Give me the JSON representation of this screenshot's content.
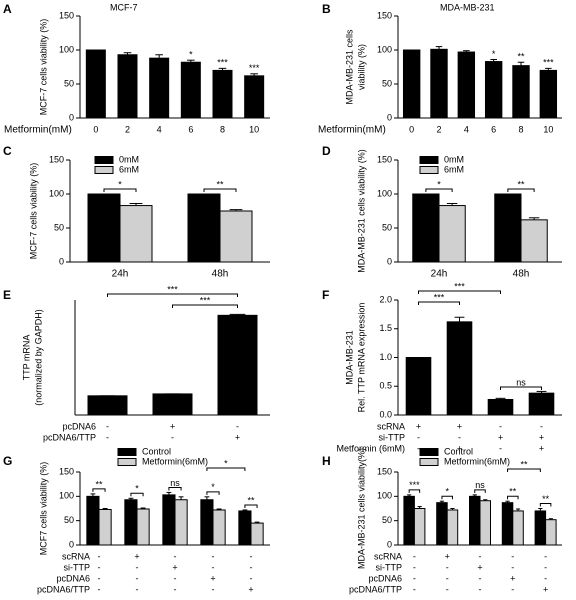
{
  "chart_data": [
    {
      "type": "bar",
      "panel": "A",
      "title": "MCF-7",
      "ylabel": [
        "MCF-7 cells viability (%)"
      ],
      "xlabel": "Metformin(mM)",
      "categories": [
        "0",
        "2",
        "4",
        "6",
        "8",
        "10"
      ],
      "values": [
        100,
        93,
        88,
        82,
        70,
        62
      ],
      "errors": [
        0,
        3,
        5,
        3,
        3,
        3
      ],
      "significance": [
        null,
        null,
        null,
        "*",
        "***",
        "***"
      ],
      "color": "#000000",
      "ylim": [
        0,
        150
      ],
      "yticks": [
        0,
        50,
        100,
        150
      ]
    },
    {
      "type": "bar",
      "panel": "B",
      "title": "MDA-MB-231",
      "ylabel": [
        "MDA-MB-231 cells",
        "viability (%)"
      ],
      "xlabel": "Metformin(mM)",
      "categories": [
        "0",
        "2",
        "4",
        "6",
        "8",
        "10"
      ],
      "values": [
        100,
        101,
        97,
        83,
        77,
        70
      ],
      "errors": [
        0,
        4,
        2,
        3,
        5,
        3
      ],
      "significance": [
        null,
        null,
        null,
        "*",
        "**",
        "***"
      ],
      "color": "#000000",
      "ylim": [
        0,
        150
      ],
      "yticks": [
        0,
        50,
        100,
        150
      ]
    },
    {
      "type": "grouped_bar",
      "panel": "C",
      "ylabel": [
        "MCF-7 cells viability (%)"
      ],
      "categories": [
        "24h",
        "48h"
      ],
      "series": [
        {
          "name": "0mM",
          "color": "#000000",
          "values": [
            100,
            100
          ],
          "errors": [
            0,
            0
          ]
        },
        {
          "name": "6mM",
          "color": "#d0d0d0",
          "values": [
            83,
            75
          ],
          "errors": [
            3,
            2
          ]
        }
      ],
      "significance": [
        "*",
        "**"
      ],
      "ylim": [
        0,
        150
      ],
      "yticks": [
        0,
        50,
        100,
        150
      ]
    },
    {
      "type": "grouped_bar",
      "panel": "D",
      "ylabel": [
        "MDA-MB-231 cells viability (%)"
      ],
      "categories": [
        "24h",
        "48h"
      ],
      "series": [
        {
          "name": "0mM",
          "color": "#000000",
          "values": [
            100,
            100
          ],
          "errors": [
            0,
            0
          ]
        },
        {
          "name": "6mM",
          "color": "#d0d0d0",
          "values": [
            83,
            62
          ],
          "errors": [
            3,
            3
          ]
        }
      ],
      "significance": [
        "*",
        "**"
      ],
      "ylim": [
        0,
        150
      ],
      "yticks": [
        0,
        50,
        100,
        150
      ]
    },
    {
      "type": "bar",
      "panel": "E",
      "ylabel": [
        "TTP mRNA",
        "(normalized by GAPDH)"
      ],
      "categories": [
        null,
        null,
        null
      ],
      "values": [
        1,
        1.1,
        5.2
      ],
      "errors": [
        0,
        0,
        0.05
      ],
      "color": "#000000",
      "ylim": [
        0,
        6
      ],
      "conditions": [
        {
          "label": "pcDNA6",
          "marks": [
            "-",
            "+",
            "-"
          ]
        },
        {
          "label": "pcDNA6/TTP",
          "marks": [
            "-",
            "-",
            "+"
          ]
        }
      ],
      "brackets": [
        "***",
        "***"
      ]
    },
    {
      "type": "bar",
      "panel": "F",
      "ylabel": [
        "MDA-MB-231",
        "Rel. TTP mRNA expression"
      ],
      "categories": [
        null,
        null,
        null,
        null
      ],
      "values": [
        1,
        1.62,
        0.27,
        0.38
      ],
      "errors": [
        0,
        0.08,
        0.02,
        0.03
      ],
      "color": "#000000",
      "ylim": [
        0,
        2
      ],
      "yticks": [
        {
          "value": 0,
          "label": "0.0"
        },
        {
          "value": 0.5,
          "label": "0.5"
        },
        {
          "value": 1,
          "label": "1.0"
        },
        {
          "value": 1.5,
          "label": "1.5"
        },
        {
          "value": 2,
          "label": "2.0"
        }
      ],
      "conditions": [
        {
          "label": "scRNA",
          "marks": [
            "+",
            "+",
            "-",
            "-"
          ]
        },
        {
          "label": "si-TTP",
          "marks": [
            "-",
            "-",
            "+",
            "+"
          ]
        },
        {
          "label": "Metformin (6mM)",
          "marks": [
            "-",
            "+",
            "-",
            "+"
          ]
        }
      ],
      "brackets": [
        "***",
        "***",
        "ns"
      ]
    },
    {
      "type": "grouped_bar",
      "panel": "G",
      "ylabel": [
        "MCF7 cells viability (%)"
      ],
      "categories": [
        null,
        null,
        null,
        null,
        null
      ],
      "series": [
        {
          "name": "Control",
          "color": "#000000",
          "values": [
            100,
            93,
            103,
            93,
            70
          ],
          "errors": [
            5,
            3,
            5,
            6,
            2
          ]
        },
        {
          "name": "Metformin(6mM)",
          "color": "#d0d0d0",
          "values": [
            73,
            74,
            93,
            72,
            45
          ],
          "errors": [
            2,
            2,
            6,
            2,
            2
          ]
        }
      ],
      "significance": [
        "**",
        "*",
        "ns",
        "*",
        "**"
      ],
      "brackets": [
        "*"
      ],
      "ylim": [
        0,
        150
      ],
      "yticks": [
        0,
        50,
        100,
        150
      ],
      "conditions": [
        {
          "label": "scRNA",
          "marks": [
            "-",
            "+",
            "-",
            "-",
            "-"
          ]
        },
        {
          "label": "si-TTP",
          "marks": [
            "-",
            "-",
            "+",
            "-",
            "-"
          ]
        },
        {
          "label": "pcDNA6",
          "marks": [
            "-",
            "-",
            "-",
            "+",
            "-"
          ]
        },
        {
          "label": "pcDNA6/TTP",
          "marks": [
            "-",
            "-",
            "-",
            "-",
            "+"
          ]
        }
      ]
    },
    {
      "type": "grouped_bar",
      "panel": "H",
      "ylabel": [
        "MDA-MB-231 cells viability(%)"
      ],
      "categories": [
        null,
        null,
        null,
        null,
        null
      ],
      "series": [
        {
          "name": "Control",
          "color": "#000000",
          "values": [
            100,
            87,
            100,
            87,
            70
          ],
          "errors": [
            3,
            3,
            3,
            3,
            5
          ]
        },
        {
          "name": "Metformin(6mM)",
          "color": "#d0d0d0",
          "values": [
            75,
            72,
            91,
            70,
            52
          ],
          "errors": [
            4,
            3,
            2,
            4,
            2
          ]
        }
      ],
      "significance": [
        "***",
        "*",
        "ns",
        "**",
        "**"
      ],
      "brackets": [
        "**"
      ],
      "ylim": [
        0,
        150
      ],
      "yticks": [
        0,
        50,
        100,
        150
      ],
      "conditions": [
        {
          "label": "scRNA",
          "marks": [
            "-",
            "+",
            "-",
            "-",
            "-"
          ]
        },
        {
          "label": "si-TTP",
          "marks": [
            "-",
            "-",
            "+",
            "-",
            "-"
          ]
        },
        {
          "label": "pcDNA6",
          "marks": [
            "-",
            "-",
            "-",
            "+",
            "-"
          ]
        },
        {
          "label": "pcDNA6/TTP",
          "marks": [
            "-",
            "-",
            "-",
            "-",
            "+"
          ]
        }
      ]
    }
  ]
}
